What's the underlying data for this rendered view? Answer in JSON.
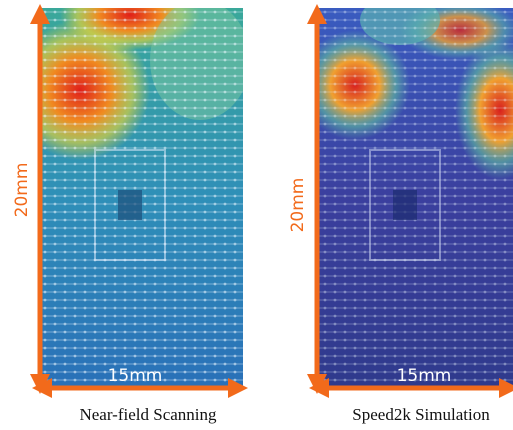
{
  "panels": [
    {
      "height_label": "20mm",
      "width_label": "15mm",
      "caption": "Near-field Scanning"
    },
    {
      "height_label": "20mm",
      "width_label": "15mm",
      "caption": "Speed2k Simulation"
    }
  ]
}
